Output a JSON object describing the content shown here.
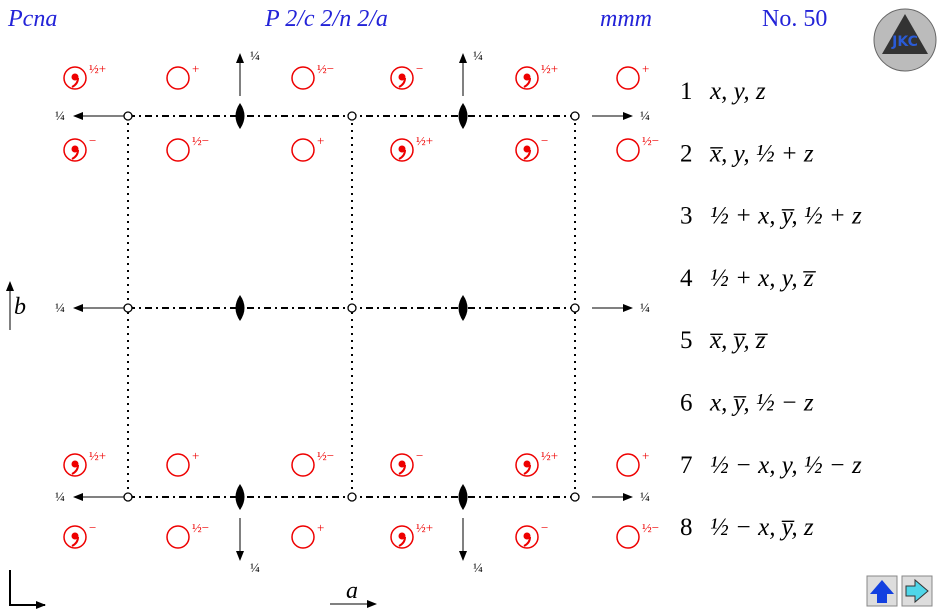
{
  "header": {
    "symbol": "Pcna",
    "full_symbol": "P 2/c 2/n 2/a",
    "point_group": "mmm",
    "number": "No. 50"
  },
  "logo": "JKC",
  "diagram": {
    "axis_a": "a",
    "axis_b": "b",
    "heights": [
      "¼",
      "¼",
      "¼",
      "¼",
      "¼",
      "¼",
      "¼",
      "¼",
      "¼",
      "¼"
    ],
    "circles": [
      {
        "label": "½+",
        "comma": true
      },
      {
        "label": "+",
        "comma": false
      },
      {
        "label": "½−",
        "comma": false
      },
      {
        "label": "−",
        "comma": true
      },
      {
        "label": "½+",
        "comma": true
      },
      {
        "label": "+",
        "comma": false
      },
      {
        "label": "−",
        "comma": true
      },
      {
        "label": "½−",
        "comma": false
      },
      {
        "label": "+",
        "comma": false
      },
      {
        "label": "½+",
        "comma": true
      },
      {
        "label": "−",
        "comma": true
      },
      {
        "label": "½−",
        "comma": false
      },
      {
        "label": "½+",
        "comma": true
      },
      {
        "label": "+",
        "comma": false
      },
      {
        "label": "½−",
        "comma": false
      },
      {
        "label": "−",
        "comma": true
      },
      {
        "label": "½+",
        "comma": true
      },
      {
        "label": "+",
        "comma": false
      },
      {
        "label": "−",
        "comma": true
      },
      {
        "label": "½−",
        "comma": false
      },
      {
        "label": "+",
        "comma": false
      },
      {
        "label": "½+",
        "comma": true
      },
      {
        "label": "−",
        "comma": true
      },
      {
        "label": "½−",
        "comma": false
      }
    ]
  },
  "positions": [
    {
      "index": "1",
      "coordinates": "x, y, z"
    },
    {
      "index": "2",
      "coordinates": "x̅, y, ½ + z"
    },
    {
      "index": "3",
      "coordinates": "½ + x, y̅, ½ + z"
    },
    {
      "index": "4",
      "coordinates": "½ + x, y, z̅"
    },
    {
      "index": "5",
      "coordinates": "x̅, y̅, z̅"
    },
    {
      "index": "6",
      "coordinates": "x, y̅, ½ − z"
    },
    {
      "index": "7",
      "coordinates": "½ − x, y, ½ − z"
    },
    {
      "index": "8",
      "coordinates": "½ − x, y̅, z"
    }
  ]
}
